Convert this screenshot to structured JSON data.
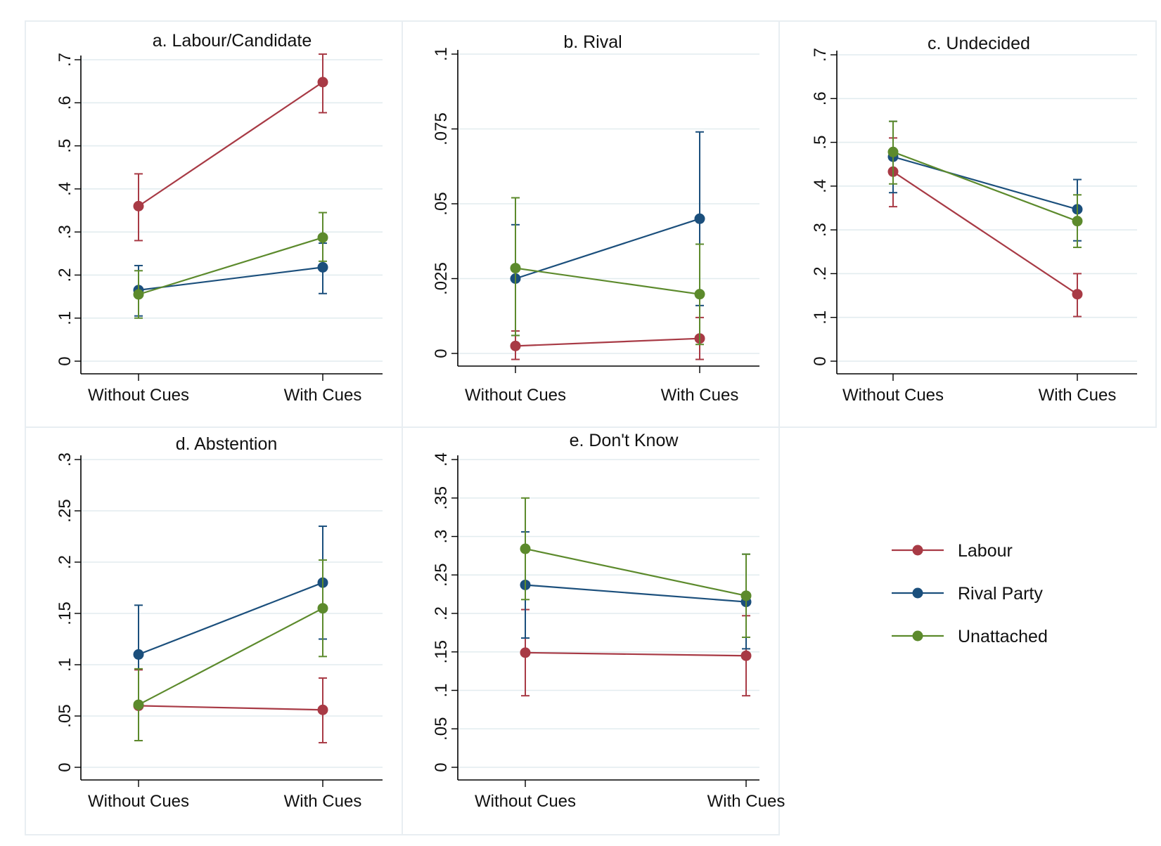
{
  "colors": {
    "labour": "#a83a45",
    "rival": "#1b4f7c",
    "unattached": "#5c8a2c"
  },
  "legend": [
    {
      "key": "labour",
      "label": "Labour"
    },
    {
      "key": "rival",
      "label": "Rival Party"
    },
    {
      "key": "unattached",
      "label": "Unattached"
    }
  ],
  "chart_data": [
    {
      "type": "line",
      "title": "a. Labour/Candidate",
      "categories": [
        "Without Cues",
        "With Cues"
      ],
      "ylim": [
        0,
        0.7
      ],
      "yticks": [
        0,
        0.1,
        0.2,
        0.3,
        0.4,
        0.5,
        0.6,
        0.7
      ],
      "ytick_labels": [
        "0",
        ".1",
        ".2",
        ".3",
        ".4",
        ".5",
        ".6",
        ".7"
      ],
      "series": [
        {
          "key": "labour",
          "values": [
            0.36,
            0.648
          ],
          "lower": [
            0.28,
            0.577
          ],
          "upper": [
            0.435,
            0.713
          ]
        },
        {
          "key": "rival",
          "values": [
            0.165,
            0.218
          ],
          "lower": [
            0.105,
            0.157
          ],
          "upper": [
            0.222,
            0.274
          ]
        },
        {
          "key": "unattached",
          "values": [
            0.155,
            0.287
          ],
          "lower": [
            0.1,
            0.232
          ],
          "upper": [
            0.21,
            0.345
          ]
        }
      ]
    },
    {
      "type": "line",
      "title": "b. Rival",
      "categories": [
        "Without Cues",
        "With Cues"
      ],
      "ylim": [
        0,
        0.1
      ],
      "yticks": [
        0,
        0.025,
        0.05,
        0.075,
        0.1
      ],
      "ytick_labels": [
        "0",
        ".025",
        ".05",
        ".075",
        ".1"
      ],
      "series": [
        {
          "key": "labour",
          "values": [
            0.0025,
            0.005
          ],
          "lower": [
            -0.002,
            -0.002
          ],
          "upper": [
            0.0075,
            0.012
          ]
        },
        {
          "key": "rival",
          "values": [
            0.025,
            0.045
          ],
          "lower": [
            0.006,
            0.016
          ],
          "upper": [
            0.043,
            0.074
          ]
        },
        {
          "key": "unattached",
          "values": [
            0.0285,
            0.0198
          ],
          "lower": [
            0.006,
            0.003
          ],
          "upper": [
            0.052,
            0.0365
          ]
        }
      ]
    },
    {
      "type": "line",
      "title": "c. Undecided",
      "categories": [
        "Without Cues",
        "With Cues"
      ],
      "ylim": [
        0,
        0.7
      ],
      "yticks": [
        0,
        0.1,
        0.2,
        0.3,
        0.4,
        0.5,
        0.6,
        0.7
      ],
      "ytick_labels": [
        "0",
        ".1",
        ".2",
        ".3",
        ".4",
        ".5",
        ".6",
        ".7"
      ],
      "series": [
        {
          "key": "labour",
          "values": [
            0.433,
            0.153
          ],
          "lower": [
            0.353,
            0.102
          ],
          "upper": [
            0.51,
            0.2
          ]
        },
        {
          "key": "rival",
          "values": [
            0.467,
            0.347
          ],
          "lower": [
            0.385,
            0.275
          ],
          "upper": [
            0.548,
            0.415
          ]
        },
        {
          "key": "unattached",
          "values": [
            0.478,
            0.32
          ],
          "lower": [
            0.405,
            0.26
          ],
          "upper": [
            0.548,
            0.38
          ]
        }
      ]
    },
    {
      "type": "line",
      "title": "d. Abstention",
      "categories": [
        "Without Cues",
        "With Cues"
      ],
      "ylim": [
        0,
        0.3
      ],
      "yticks": [
        0,
        0.05,
        0.1,
        0.15,
        0.2,
        0.25,
        0.3
      ],
      "ytick_labels": [
        "0",
        ".05",
        ".1",
        ".15",
        ".2",
        ".25",
        ".3"
      ],
      "series": [
        {
          "key": "labour",
          "values": [
            0.06,
            0.056
          ],
          "lower": [
            0.026,
            0.024
          ],
          "upper": [
            0.095,
            0.087
          ]
        },
        {
          "key": "rival",
          "values": [
            0.11,
            0.18
          ],
          "lower": [
            0.063,
            0.125
          ],
          "upper": [
            0.158,
            0.235
          ]
        },
        {
          "key": "unattached",
          "values": [
            0.061,
            0.155
          ],
          "lower": [
            0.026,
            0.108
          ],
          "upper": [
            0.096,
            0.202
          ]
        }
      ]
    },
    {
      "type": "line",
      "title": "e. Don't Know",
      "categories": [
        "Without Cues",
        "With Cues"
      ],
      "ylim": [
        0,
        0.4
      ],
      "yticks": [
        0,
        0.05,
        0.1,
        0.15,
        0.2,
        0.25,
        0.3,
        0.35,
        0.4
      ],
      "ytick_labels": [
        "0",
        ".05",
        ".1",
        ".15",
        ".2",
        ".25",
        ".3",
        ".35",
        ".4"
      ],
      "series": [
        {
          "key": "labour",
          "values": [
            0.149,
            0.145
          ],
          "lower": [
            0.093,
            0.093
          ],
          "upper": [
            0.205,
            0.197
          ]
        },
        {
          "key": "rival",
          "values": [
            0.237,
            0.215
          ],
          "lower": [
            0.168,
            0.154
          ],
          "upper": [
            0.306,
            0.277
          ]
        },
        {
          "key": "unattached",
          "values": [
            0.284,
            0.223
          ],
          "lower": [
            0.218,
            0.169
          ],
          "upper": [
            0.35,
            0.277
          ]
        }
      ]
    }
  ]
}
